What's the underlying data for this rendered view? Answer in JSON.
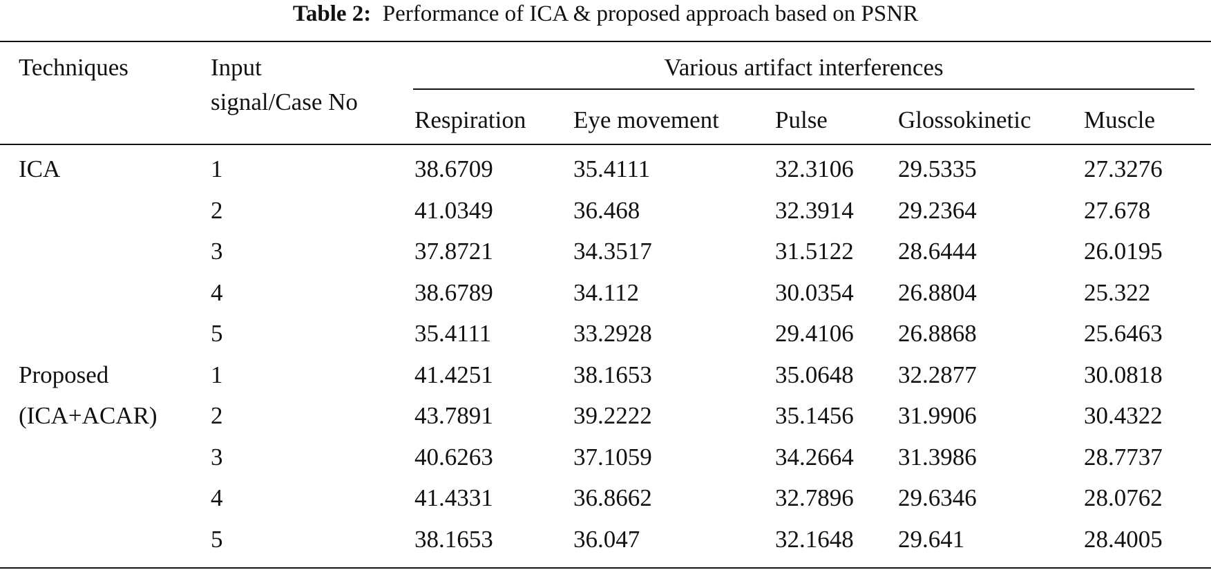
{
  "caption": {
    "label": "Table 2:",
    "text": "Performance of ICA & proposed approach based on PSNR"
  },
  "headers": {
    "techniques": "Techniques",
    "input_line1": "Input",
    "input_line2": "signal/Case No",
    "group": "Various artifact interferences",
    "columns": [
      "Respiration",
      "Eye movement",
      "Pulse",
      "Glossokinetic",
      "Muscle"
    ]
  },
  "rows": [
    {
      "technique": "ICA",
      "case": "1",
      "values": [
        "38.6709",
        "35.4111",
        "32.3106",
        "29.5335",
        "27.3276"
      ]
    },
    {
      "technique": "",
      "case": "2",
      "values": [
        "41.0349",
        "36.468",
        "32.3914",
        "29.2364",
        "27.678"
      ]
    },
    {
      "technique": "",
      "case": "3",
      "values": [
        "37.8721",
        "34.3517",
        "31.5122",
        "28.6444",
        "26.0195"
      ]
    },
    {
      "technique": "",
      "case": "4",
      "values": [
        "38.6789",
        "34.112",
        "30.0354",
        "26.8804",
        "25.322"
      ]
    },
    {
      "technique": "",
      "case": "5",
      "values": [
        "35.4111",
        "33.2928",
        "29.4106",
        "26.8868",
        "25.6463"
      ]
    },
    {
      "technique": "Proposed",
      "case": "1",
      "values": [
        "41.4251",
        "38.1653",
        "35.0648",
        "32.2877",
        "30.0818"
      ]
    },
    {
      "technique": "(ICA+ACAR)",
      "case": "2",
      "values": [
        "43.7891",
        "39.2222",
        "35.1456",
        "31.9906",
        "30.4322"
      ]
    },
    {
      "technique": "",
      "case": "3",
      "values": [
        "40.6263",
        "37.1059",
        "34.2664",
        "31.3986",
        "28.7737"
      ]
    },
    {
      "technique": "",
      "case": "4",
      "values": [
        "41.4331",
        "36.8662",
        "32.7896",
        "29.6346",
        "28.0762"
      ]
    },
    {
      "technique": "",
      "case": "5",
      "values": [
        "38.1653",
        "36.047",
        "32.1648",
        "29.641",
        "28.4005"
      ]
    }
  ]
}
